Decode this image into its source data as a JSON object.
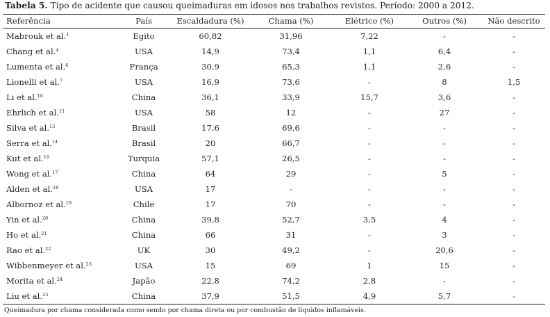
{
  "caption": {
    "label": "Tabela 5.",
    "text": " Tipo de acidente que causou queimaduras em idosos nos trabalhos revistos. Período: 2000 a 2012."
  },
  "table": {
    "headers": [
      "Referência",
      "País",
      "Escaldadura (%)",
      "Chama (%)",
      "Elétrico (%)",
      "Outros (%)",
      "Não descrito"
    ],
    "rows": [
      {
        "ref": "Mabrouk et al.",
        "sup": "1",
        "cells": [
          "Egito",
          "60,82",
          "31,96",
          "7,22",
          "-",
          "-"
        ]
      },
      {
        "ref": "Chang et al.",
        "sup": "4",
        "cells": [
          "USA",
          "14,9",
          "73,4",
          "1,1",
          "6,4",
          "-"
        ]
      },
      {
        "ref": "Lumenta et al.",
        "sup": "6",
        "cells": [
          "França",
          "30,9",
          "65,3",
          "1,1",
          "2,6",
          "-"
        ]
      },
      {
        "ref": "Lionelli et al.",
        "sup": "7",
        "cells": [
          "USA",
          "16,9",
          "73,6",
          "-",
          "8",
          "1,5"
        ]
      },
      {
        "ref": "Li et al.",
        "sup": "10",
        "cells": [
          "China",
          "36,1",
          "33,9",
          "15,7",
          "3,6",
          "-"
        ]
      },
      {
        "ref": "Ehrlich et al.",
        "sup": "11",
        "cells": [
          "USA",
          "58",
          "12",
          "-",
          "27",
          "-"
        ]
      },
      {
        "ref": "Silva et al.",
        "sup": "13",
        "cells": [
          "Brasil",
          "17,6",
          "69,6",
          "-",
          "-",
          "-"
        ]
      },
      {
        "ref": "Serra et al.",
        "sup": "14",
        "cells": [
          "Brasil",
          "20",
          "66,7",
          "-",
          "-",
          "-"
        ]
      },
      {
        "ref": "Kut et al.",
        "sup": "16",
        "cells": [
          "Turquia",
          "57,1",
          "26,5",
          "-",
          "-",
          "-"
        ]
      },
      {
        "ref": "Wong et al.",
        "sup": "17",
        "cells": [
          "China",
          "64",
          "29",
          "-",
          "5",
          "-"
        ]
      },
      {
        "ref": "Alden et al.",
        "sup": "18",
        "cells": [
          "USA",
          "17",
          "-",
          "-",
          "-",
          "-"
        ]
      },
      {
        "ref": "Albornoz et al.",
        "sup": "19",
        "cells": [
          "Chile",
          "17",
          "70",
          "-",
          "-",
          "-"
        ]
      },
      {
        "ref": "Yin et al.",
        "sup": "20",
        "cells": [
          "China",
          "39,8",
          "52,7",
          "3,5",
          "4",
          "-"
        ]
      },
      {
        "ref": "Ho et al.",
        "sup": "21",
        "cells": [
          "China",
          "66",
          "31",
          "-",
          "3",
          "-"
        ]
      },
      {
        "ref": "Rao et al.",
        "sup": "22",
        "cells": [
          "UK",
          "30",
          "49,2",
          "-",
          "20,6",
          "-"
        ]
      },
      {
        "ref": "Wibbenmeyer et al.",
        "sup": "23",
        "cells": [
          "USA",
          "15",
          "69",
          "1",
          "15",
          "-"
        ]
      },
      {
        "ref": "Morita et al.",
        "sup": "24",
        "cells": [
          "Japão",
          "22,8",
          "74,2",
          "2,8",
          "-",
          "-"
        ]
      },
      {
        "ref": "Liu et al.",
        "sup": "25",
        "cells": [
          "China",
          "37,9",
          "51,5",
          "4,9",
          "5,7",
          "-"
        ]
      }
    ]
  },
  "footnote": "Queimadura por chama considerada como sendo por chama direta ou por combustão de líquidos inflamáveis."
}
